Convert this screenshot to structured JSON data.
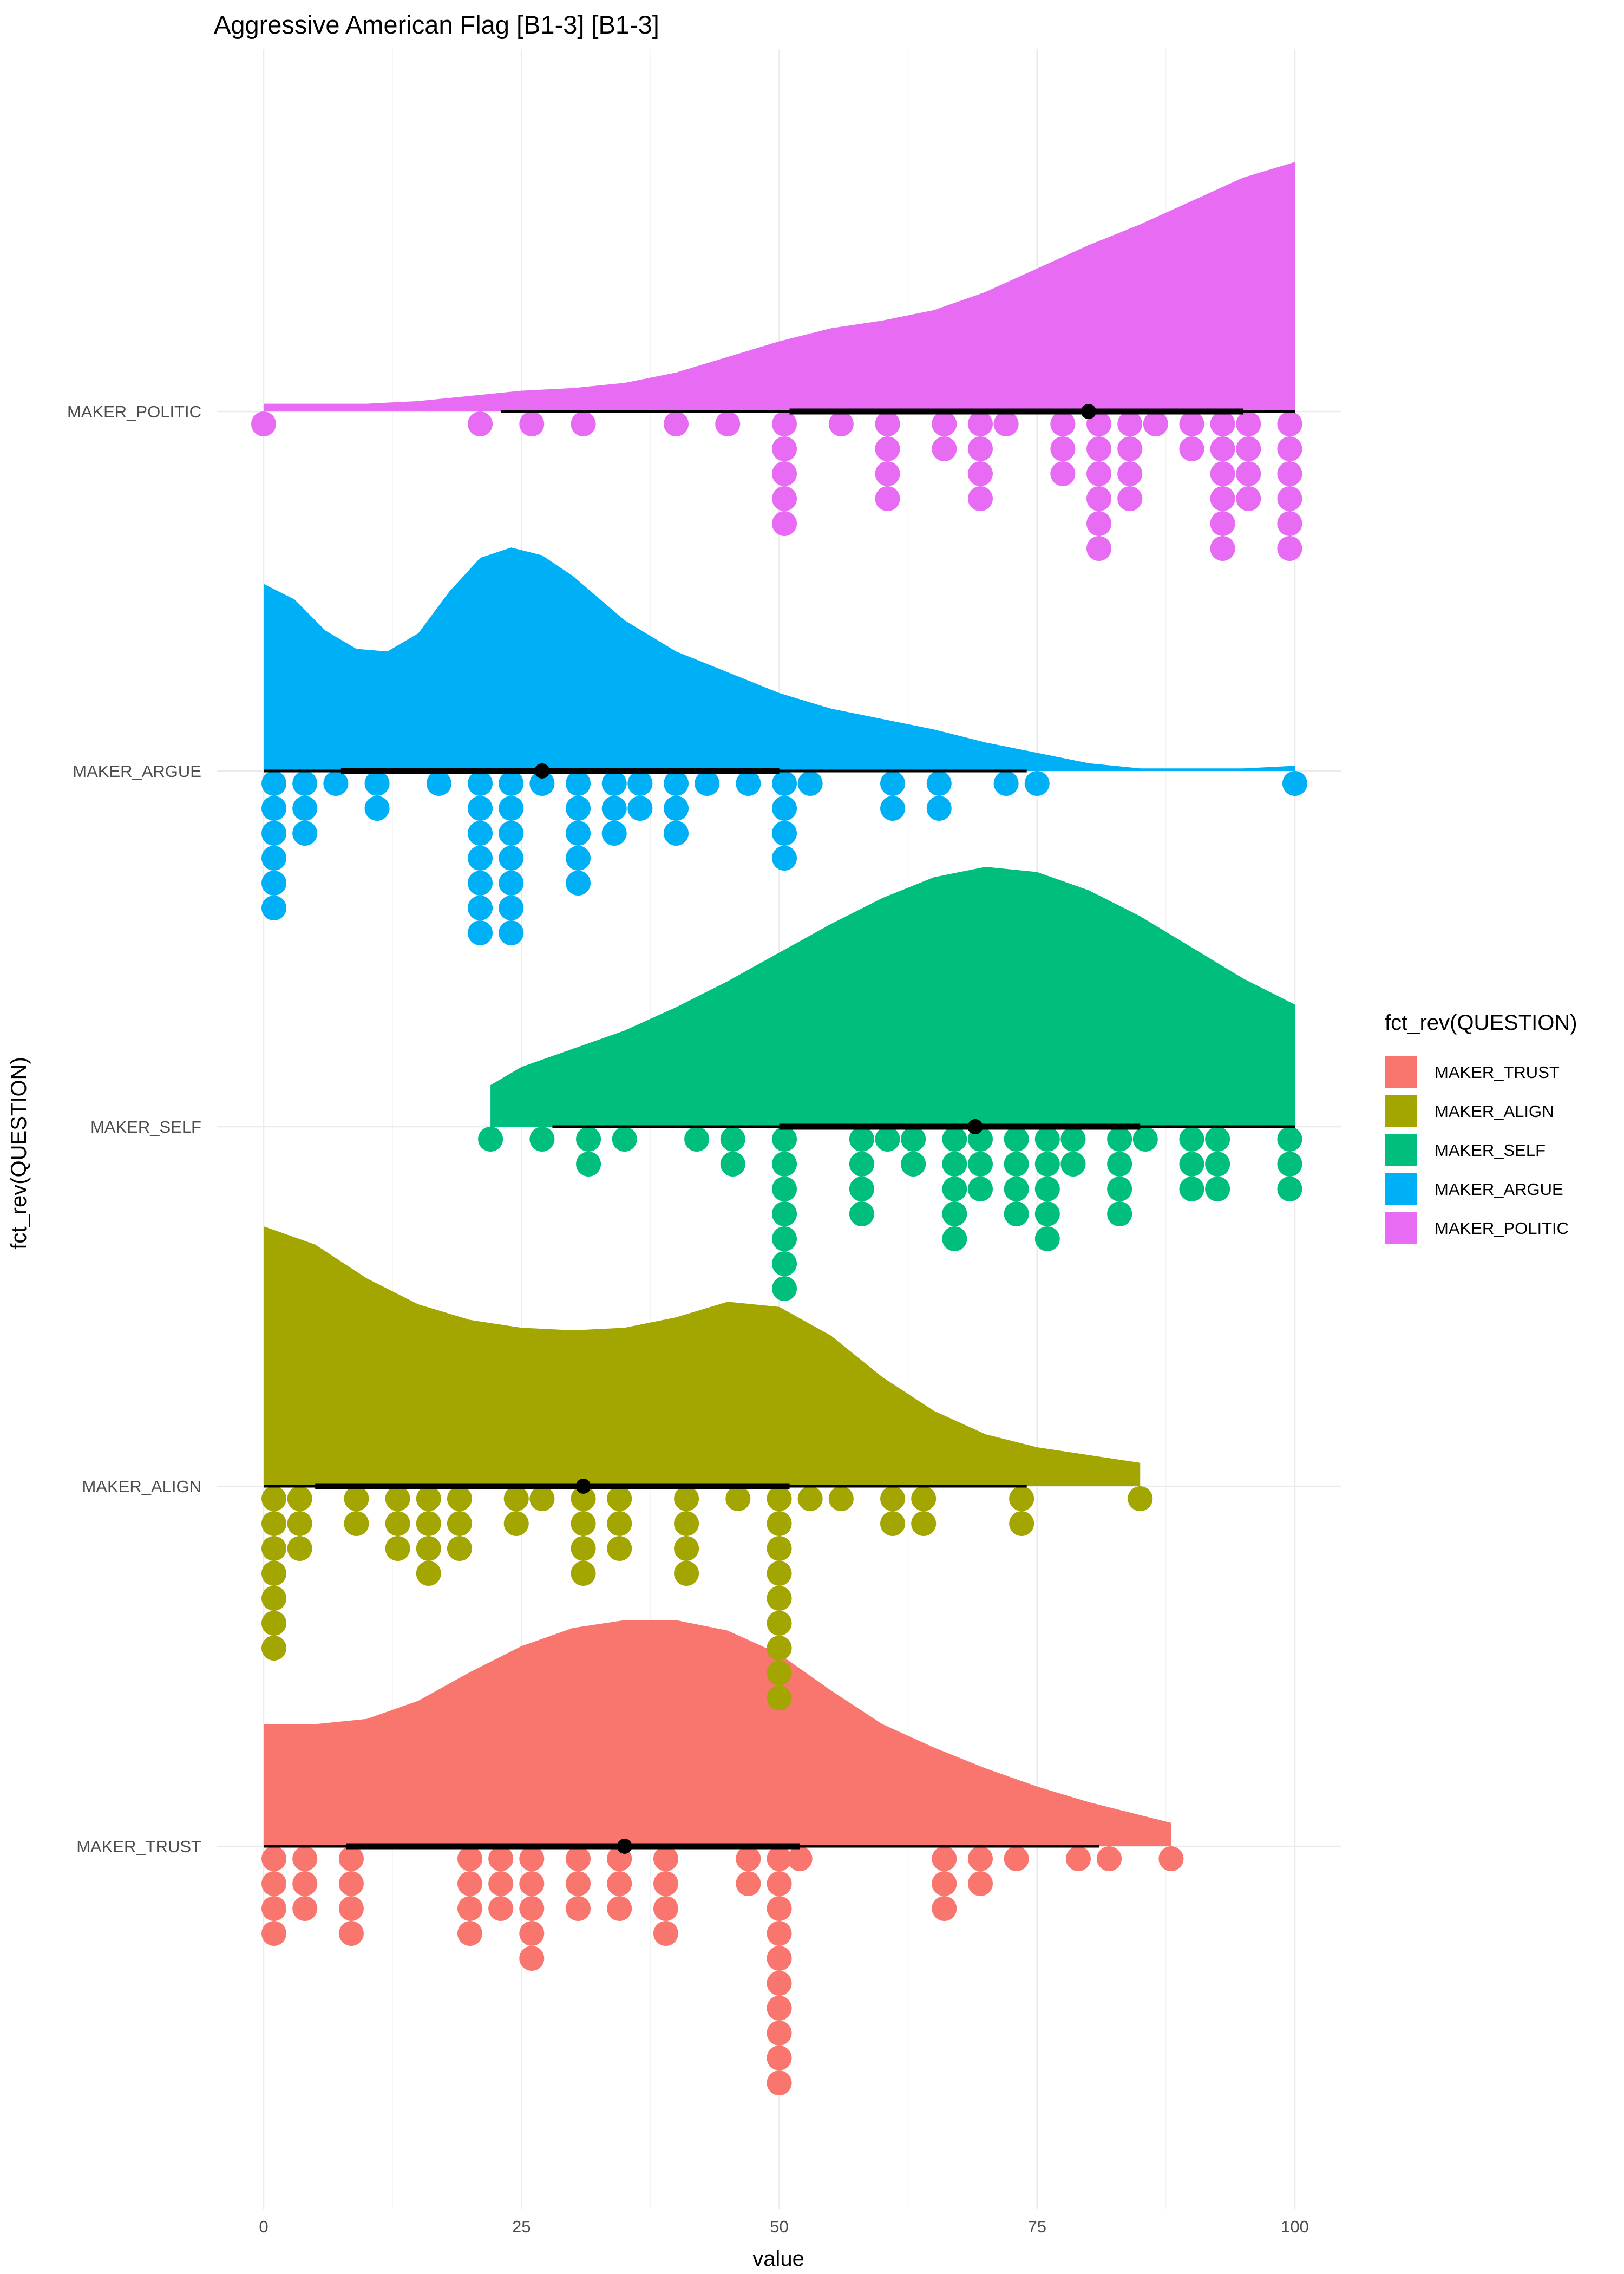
{
  "chart_data": {
    "type": "raincloud",
    "title": "Aggressive American Flag [B1-3] [B1-3]",
    "xlabel": "value",
    "ylabel": "fct_rev(QUESTION)",
    "xlim": [
      0,
      100
    ],
    "x_ticks": [
      0,
      25,
      50,
      75,
      100
    ],
    "grid": true,
    "legend": {
      "title": "fct_rev(QUESTION)",
      "position": "right",
      "entries": [
        "MAKER_TRUST",
        "MAKER_ALIGN",
        "MAKER_SELF",
        "MAKER_ARGUE",
        "MAKER_POLITIC"
      ]
    },
    "categories": [
      "MAKER_TRUST",
      "MAKER_ALIGN",
      "MAKER_SELF",
      "MAKER_ARGUE",
      "MAKER_POLITIC"
    ],
    "series": [
      {
        "name": "MAKER_TRUST",
        "color": "#F8766D",
        "density": {
          "x": [
            0,
            5,
            10,
            15,
            20,
            25,
            30,
            35,
            40,
            45,
            50,
            55,
            60,
            65,
            70,
            75,
            80,
            85,
            88
          ],
          "y": [
            0.47,
            0.47,
            0.49,
            0.56,
            0.67,
            0.77,
            0.84,
            0.87,
            0.87,
            0.83,
            0.74,
            0.6,
            0.47,
            0.38,
            0.3,
            0.23,
            0.17,
            0.12,
            0.09
          ]
        },
        "dots": [
          {
            "x": 1,
            "n": 4
          },
          {
            "x": 4,
            "n": 3
          },
          {
            "x": 8.5,
            "n": 4
          },
          {
            "x": 20,
            "n": 4
          },
          {
            "x": 23,
            "n": 3
          },
          {
            "x": 26,
            "n": 5
          },
          {
            "x": 30.5,
            "n": 3
          },
          {
            "x": 34.5,
            "n": 3
          },
          {
            "x": 39,
            "n": 4
          },
          {
            "x": 47,
            "n": 2
          },
          {
            "x": 50,
            "n": 10
          },
          {
            "x": 52,
            "n": 1
          },
          {
            "x": 66,
            "n": 3
          },
          {
            "x": 69.5,
            "n": 2
          },
          {
            "x": 73,
            "n": 1
          },
          {
            "x": 79,
            "n": 1
          },
          {
            "x": 82,
            "n": 1
          },
          {
            "x": 88,
            "n": 1
          }
        ],
        "summary": {
          "median": 35,
          "q1": 8,
          "q3": 52,
          "low": 0,
          "high": 81
        }
      },
      {
        "name": "MAKER_ALIGN",
        "color": "#A3A500",
        "density": {
          "x": [
            0,
            5,
            10,
            15,
            20,
            25,
            30,
            35,
            40,
            45,
            50,
            55,
            60,
            65,
            70,
            75,
            80,
            85
          ],
          "y": [
            1.0,
            0.93,
            0.8,
            0.7,
            0.64,
            0.61,
            0.6,
            0.61,
            0.65,
            0.71,
            0.69,
            0.58,
            0.42,
            0.29,
            0.2,
            0.15,
            0.12,
            0.09
          ]
        },
        "dots": [
          {
            "x": 1,
            "n": 7
          },
          {
            "x": 3.5,
            "n": 3
          },
          {
            "x": 9,
            "n": 2
          },
          {
            "x": 13,
            "n": 3
          },
          {
            "x": 16,
            "n": 4
          },
          {
            "x": 19,
            "n": 3
          },
          {
            "x": 24.5,
            "n": 2
          },
          {
            "x": 27,
            "n": 1
          },
          {
            "x": 31,
            "n": 4
          },
          {
            "x": 34.5,
            "n": 3
          },
          {
            "x": 41,
            "n": 4
          },
          {
            "x": 46,
            "n": 1
          },
          {
            "x": 50,
            "n": 9
          },
          {
            "x": 53,
            "n": 1
          },
          {
            "x": 56,
            "n": 1
          },
          {
            "x": 61,
            "n": 2
          },
          {
            "x": 64,
            "n": 2
          },
          {
            "x": 73.5,
            "n": 2
          },
          {
            "x": 85,
            "n": 1
          }
        ],
        "summary": {
          "median": 31,
          "q1": 5,
          "q3": 51,
          "low": 0,
          "high": 74
        }
      },
      {
        "name": "MAKER_SELF",
        "color": "#00BF7D",
        "density": {
          "x": [
            22,
            25,
            30,
            35,
            40,
            45,
            50,
            55,
            60,
            65,
            70,
            75,
            80,
            85,
            90,
            95,
            100
          ],
          "y": [
            0.16,
            0.23,
            0.3,
            0.37,
            0.46,
            0.56,
            0.67,
            0.78,
            0.88,
            0.96,
            1.0,
            0.98,
            0.91,
            0.81,
            0.69,
            0.57,
            0.47
          ]
        },
        "dots": [
          {
            "x": 22,
            "n": 1
          },
          {
            "x": 27,
            "n": 1
          },
          {
            "x": 31.5,
            "n": 2
          },
          {
            "x": 35,
            "n": 1
          },
          {
            "x": 42,
            "n": 1
          },
          {
            "x": 45.5,
            "n": 2
          },
          {
            "x": 50.5,
            "n": 7
          },
          {
            "x": 58,
            "n": 4
          },
          {
            "x": 60.5,
            "n": 1
          },
          {
            "x": 63,
            "n": 2
          },
          {
            "x": 67,
            "n": 5
          },
          {
            "x": 69.5,
            "n": 3
          },
          {
            "x": 73,
            "n": 4
          },
          {
            "x": 76,
            "n": 5
          },
          {
            "x": 78.5,
            "n": 2
          },
          {
            "x": 83,
            "n": 4
          },
          {
            "x": 85.5,
            "n": 1
          },
          {
            "x": 90,
            "n": 3
          },
          {
            "x": 92.5,
            "n": 3
          },
          {
            "x": 99.5,
            "n": 3
          }
        ],
        "summary": {
          "median": 69,
          "q1": 50,
          "q3": 85,
          "low": 28,
          "high": 100
        }
      },
      {
        "name": "MAKER_ARGUE",
        "color": "#00B0F6",
        "density": {
          "x": [
            0,
            3,
            6,
            9,
            12,
            15,
            18,
            21,
            24,
            27,
            30,
            35,
            40,
            45,
            50,
            55,
            60,
            65,
            70,
            75,
            80,
            85,
            90,
            95,
            100
          ],
          "y": [
            0.72,
            0.66,
            0.54,
            0.47,
            0.46,
            0.53,
            0.69,
            0.82,
            0.86,
            0.83,
            0.75,
            0.58,
            0.46,
            0.38,
            0.3,
            0.24,
            0.2,
            0.16,
            0.11,
            0.07,
            0.03,
            0.01,
            0.01,
            0.01,
            0.02
          ]
        },
        "dots": [
          {
            "x": 1,
            "n": 6
          },
          {
            "x": 4,
            "n": 3
          },
          {
            "x": 7,
            "n": 1
          },
          {
            "x": 11,
            "n": 2
          },
          {
            "x": 17,
            "n": 1
          },
          {
            "x": 21,
            "n": 7
          },
          {
            "x": 24,
            "n": 7
          },
          {
            "x": 27,
            "n": 1
          },
          {
            "x": 30.5,
            "n": 5
          },
          {
            "x": 34,
            "n": 3
          },
          {
            "x": 36.5,
            "n": 2
          },
          {
            "x": 40,
            "n": 3
          },
          {
            "x": 43,
            "n": 1
          },
          {
            "x": 47,
            "n": 1
          },
          {
            "x": 50.5,
            "n": 4
          },
          {
            "x": 53,
            "n": 1
          },
          {
            "x": 61,
            "n": 2
          },
          {
            "x": 65.5,
            "n": 2
          },
          {
            "x": 72,
            "n": 1
          },
          {
            "x": 75,
            "n": 1
          },
          {
            "x": 100,
            "n": 1
          }
        ],
        "summary": {
          "median": 27,
          "q1": 7.5,
          "q3": 50,
          "low": 0,
          "high": 74
        }
      },
      {
        "name": "MAKER_POLITIC",
        "color": "#E76BF3",
        "density": {
          "x": [
            0,
            5,
            10,
            15,
            20,
            25,
            30,
            35,
            40,
            45,
            50,
            55,
            60,
            65,
            70,
            75,
            80,
            85,
            90,
            95,
            100
          ],
          "y": [
            0.03,
            0.03,
            0.03,
            0.04,
            0.06,
            0.08,
            0.09,
            0.11,
            0.15,
            0.21,
            0.27,
            0.32,
            0.35,
            0.39,
            0.46,
            0.55,
            0.64,
            0.72,
            0.81,
            0.9,
            0.96
          ]
        },
        "dots": [
          {
            "x": 0,
            "n": 1
          },
          {
            "x": 21,
            "n": 1
          },
          {
            "x": 26,
            "n": 1
          },
          {
            "x": 31,
            "n": 1
          },
          {
            "x": 40,
            "n": 1
          },
          {
            "x": 45,
            "n": 1
          },
          {
            "x": 50.5,
            "n": 5
          },
          {
            "x": 56,
            "n": 1
          },
          {
            "x": 60.5,
            "n": 4
          },
          {
            "x": 66,
            "n": 2
          },
          {
            "x": 69.5,
            "n": 4
          },
          {
            "x": 72,
            "n": 1
          },
          {
            "x": 77.5,
            "n": 3
          },
          {
            "x": 81,
            "n": 6
          },
          {
            "x": 84,
            "n": 4
          },
          {
            "x": 86.5,
            "n": 1
          },
          {
            "x": 90,
            "n": 2
          },
          {
            "x": 93,
            "n": 6
          },
          {
            "x": 95.5,
            "n": 4
          },
          {
            "x": 99.5,
            "n": 6
          }
        ],
        "summary": {
          "median": 80,
          "q1": 51,
          "q3": 95,
          "low": 23,
          "high": 100
        }
      }
    ]
  }
}
